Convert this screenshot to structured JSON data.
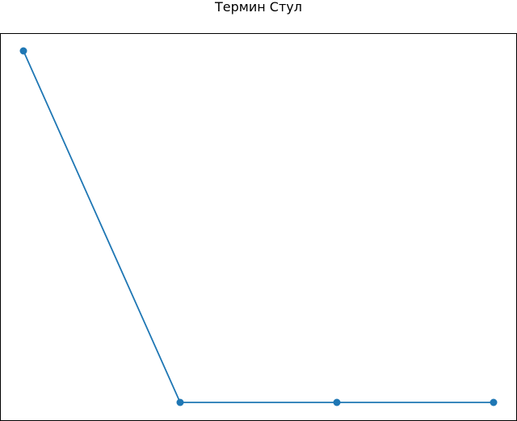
{
  "chart_data": {
    "type": "line",
    "title": "Термин Стул",
    "x": [
      1,
      2,
      3,
      4
    ],
    "series": [
      {
        "values": [
          100,
          0,
          0,
          0
        ],
        "color": "#1f77b4",
        "marker": "circle"
      }
    ],
    "xlabel": "",
    "ylabel": "",
    "axes_visible": false,
    "grid": false,
    "frame_color": "#000000"
  }
}
